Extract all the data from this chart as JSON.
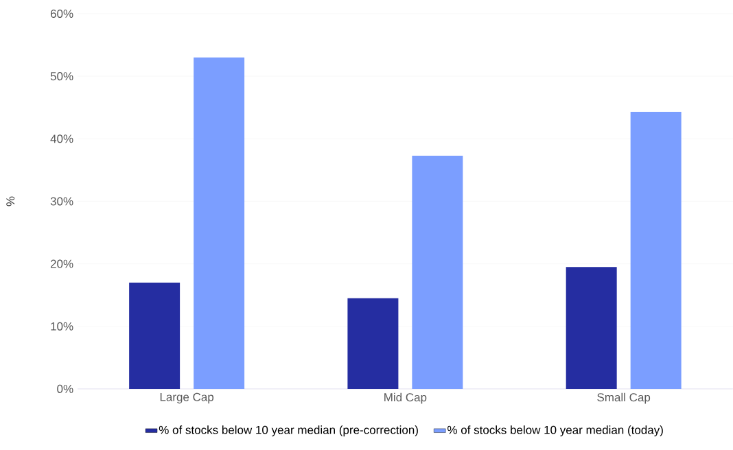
{
  "chart_data": {
    "type": "bar",
    "ylabel": "%",
    "categories": [
      "Large Cap",
      "Mid Cap",
      "Small Cap"
    ],
    "series": [
      {
        "name": "% of stocks below 10 year median (pre-correction)",
        "color": "#252da1",
        "values": [
          17.0,
          14.5,
          19.5
        ]
      },
      {
        "name": "% of stocks below 10 year median (today)",
        "color": "#7b9eff",
        "values": [
          53.0,
          37.3,
          44.3
        ]
      }
    ],
    "ylim": [
      0,
      60
    ],
    "yticks": [
      {
        "value": 0,
        "label": "0%"
      },
      {
        "value": 10,
        "label": "10%"
      },
      {
        "value": 20,
        "label": "20%"
      },
      {
        "value": 30,
        "label": "30%"
      },
      {
        "value": 40,
        "label": "40%"
      },
      {
        "value": 50,
        "label": "50%"
      },
      {
        "value": 60,
        "label": "60%"
      }
    ],
    "grid": "y",
    "legend": "bottom"
  }
}
